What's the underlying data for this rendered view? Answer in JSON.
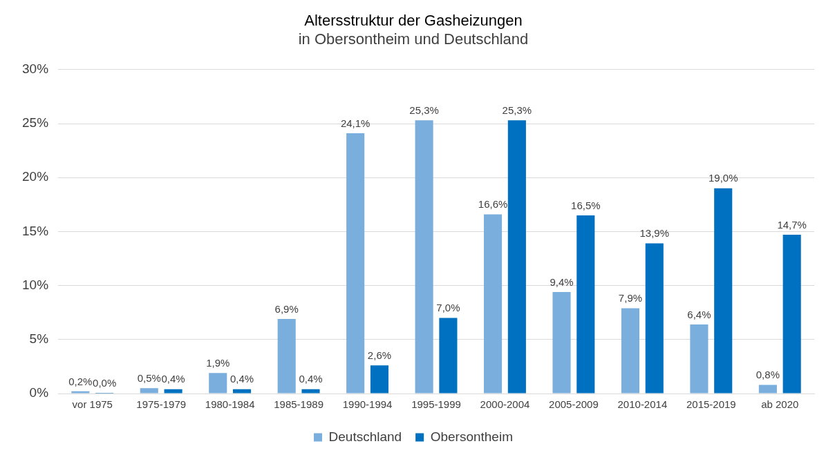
{
  "chart_data": {
    "type": "bar",
    "title": "Altersstruktur der Gasheizungen",
    "subtitle": "in Obersontheim und Deutschland",
    "categories": [
      "vor 1975",
      "1975-1979",
      "1980-1984",
      "1985-1989",
      "1990-1994",
      "1995-1999",
      "2000-2004",
      "2005-2009",
      "2010-2014",
      "2015-2019",
      "ab 2020"
    ],
    "series": [
      {
        "name": "Deutschland",
        "color": "#7aaedc",
        "values": [
          0.2,
          0.5,
          1.9,
          6.9,
          24.1,
          25.3,
          16.6,
          9.4,
          7.9,
          6.4,
          0.8
        ],
        "value_labels": [
          "0,2%",
          "0,5%",
          "1,9%",
          "6,9%",
          "24,1%",
          "25,3%",
          "16,6%",
          "9,4%",
          "7,9%",
          "6,4%",
          "0,8%"
        ]
      },
      {
        "name": "Obersontheim",
        "color": "#0070c0",
        "values": [
          0.0,
          0.4,
          0.4,
          0.4,
          2.6,
          7.0,
          25.3,
          16.5,
          13.9,
          19.0,
          14.7
        ],
        "value_labels": [
          "0,0%",
          "0,4%",
          "0,4%",
          "0,4%",
          "2,6%",
          "7,0%",
          "25,3%",
          "16,5%",
          "13,9%",
          "19,0%",
          "14,7%"
        ]
      }
    ],
    "ylim": [
      0,
      30
    ],
    "yticks": [
      {
        "value": 0,
        "label": "0%"
      },
      {
        "value": 5,
        "label": "5%"
      },
      {
        "value": 10,
        "label": "10%"
      },
      {
        "value": 15,
        "label": "15%"
      },
      {
        "value": 20,
        "label": "20%"
      },
      {
        "value": 25,
        "label": "25%"
      },
      {
        "value": 30,
        "label": "30%"
      }
    ],
    "grid": "y",
    "legend": "bottom"
  }
}
